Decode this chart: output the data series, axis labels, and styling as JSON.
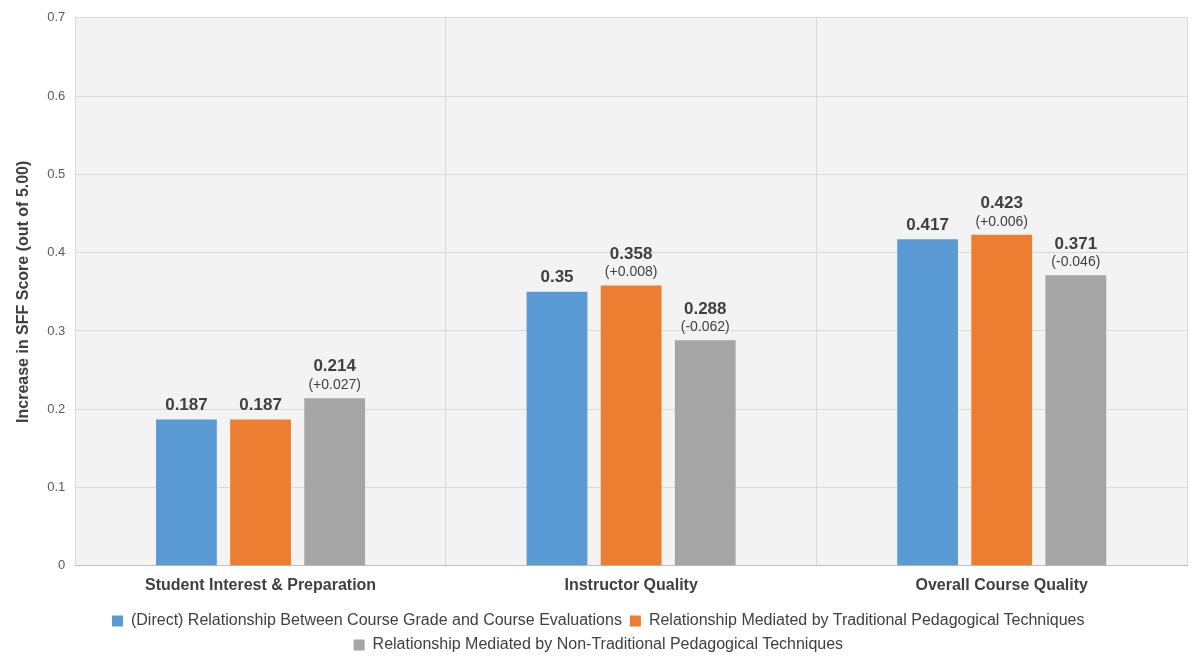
{
  "chart_data": {
    "type": "bar",
    "ylabel": "Increase in SFF Score (out of 5.00)",
    "categories": [
      "Student Interest & Preparation",
      "Instructor Quality",
      "Overall Course Quality"
    ],
    "series": [
      {
        "name": "(Direct) Relationship Between Course Grade and Course Evaluations",
        "color": "#5b9bd5",
        "values": [
          0.187,
          0.35,
          0.417
        ],
        "value_labels": [
          "0.187",
          "0.35",
          "0.417"
        ]
      },
      {
        "name": "Relationship Mediated by Traditional Pedagogical Techniques",
        "color": "#ed7d31",
        "values": [
          0.187,
          0.358,
          0.423
        ],
        "value_labels": [
          "0.187",
          "0.358\n(+0.008)",
          "0.423\n(+0.006)"
        ]
      },
      {
        "name": "Relationship Mediated by Non-Traditional Pedagogical Techniques",
        "color": "#a5a5a5",
        "values": [
          0.214,
          0.288,
          0.371
        ],
        "value_labels": [
          "0.214\n(+0.027)",
          "0.288\n(-0.062)",
          "0.371\n(-0.046)"
        ]
      }
    ],
    "ylim": [
      0,
      0.7
    ],
    "yticks": [
      0,
      0.1,
      0.2,
      0.3,
      0.4,
      0.5,
      0.6,
      0.7
    ],
    "grid": true,
    "legend": "bottom"
  }
}
